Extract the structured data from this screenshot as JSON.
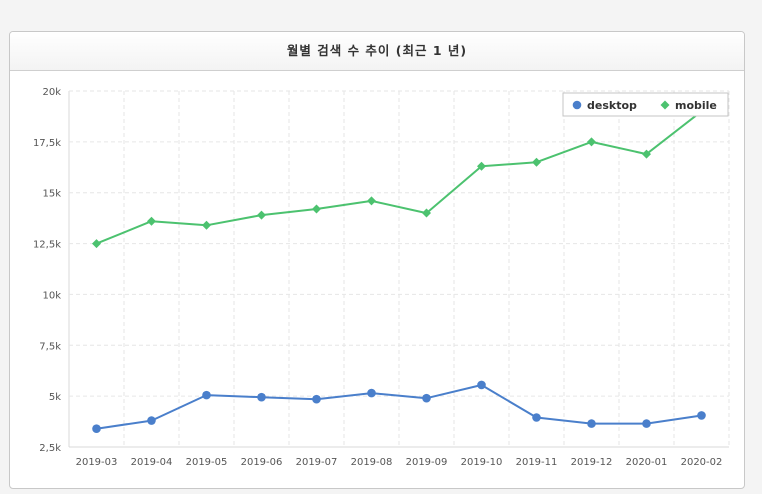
{
  "panel": {
    "title": "월별 검색 수 추이 (최근 1 년)"
  },
  "chart_data": {
    "type": "line",
    "title": "월별 검색 수 추이 (최근 1 년)",
    "xlabel": "",
    "ylabel": "",
    "categories": [
      "2019-03",
      "2019-04",
      "2019-05",
      "2019-06",
      "2019-07",
      "2019-08",
      "2019-09",
      "2019-10",
      "2019-11",
      "2019-12",
      "2020-01",
      "2020-02"
    ],
    "y_ticks": [
      "2,5k",
      "5k",
      "7,5k",
      "10k",
      "12,5k",
      "15k",
      "17,5k",
      "20k"
    ],
    "y_tick_values": [
      2500,
      5000,
      7500,
      10000,
      12500,
      15000,
      17500,
      20000
    ],
    "ylim": [
      2500,
      20000
    ],
    "grid": true,
    "legend_position": "top-right",
    "series": [
      {
        "name": "desktop",
        "color": "#4a7fcb",
        "marker": "circle",
        "values": [
          3400,
          3800,
          5050,
          4950,
          4850,
          5150,
          4900,
          5550,
          3950,
          3650,
          3650,
          4050
        ]
      },
      {
        "name": "mobile",
        "color": "#4cc26f",
        "marker": "diamond",
        "values": [
          12500,
          13600,
          13400,
          13900,
          14200,
          14600,
          14000,
          16300,
          16500,
          17500,
          16900,
          19000
        ]
      }
    ]
  }
}
